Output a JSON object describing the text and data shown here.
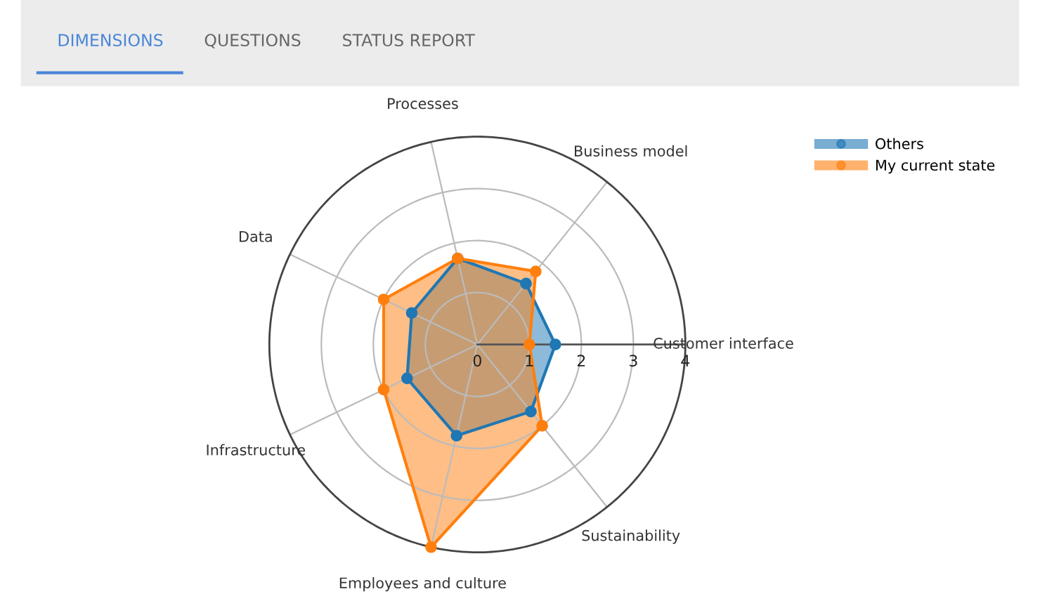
{
  "chart_data": {
    "type": "radar",
    "categories": [
      "Processes",
      "Business model",
      "Customer interface",
      "Sustainability",
      "Employees and culture",
      "Infrastructure",
      "Data"
    ],
    "series": [
      {
        "name": "Others",
        "color": "#1f77b4",
        "values": [
          1.7,
          1.5,
          1.5,
          1.65,
          1.8,
          1.5,
          1.4
        ]
      },
      {
        "name": "My current state",
        "color": "#ff7f0e",
        "values": [
          1.7,
          1.8,
          1.0,
          2.0,
          4.0,
          2.0,
          2.0
        ]
      }
    ],
    "ylim": [
      0,
      4
    ],
    "yticks": [
      0,
      1,
      2,
      3,
      4
    ],
    "marker": "circle",
    "legend": "top right",
    "grid": true,
    "annotations": [
      "DIMENSIONS",
      "QUESTIONS",
      "STATUS REPORT"
    ]
  }
}
